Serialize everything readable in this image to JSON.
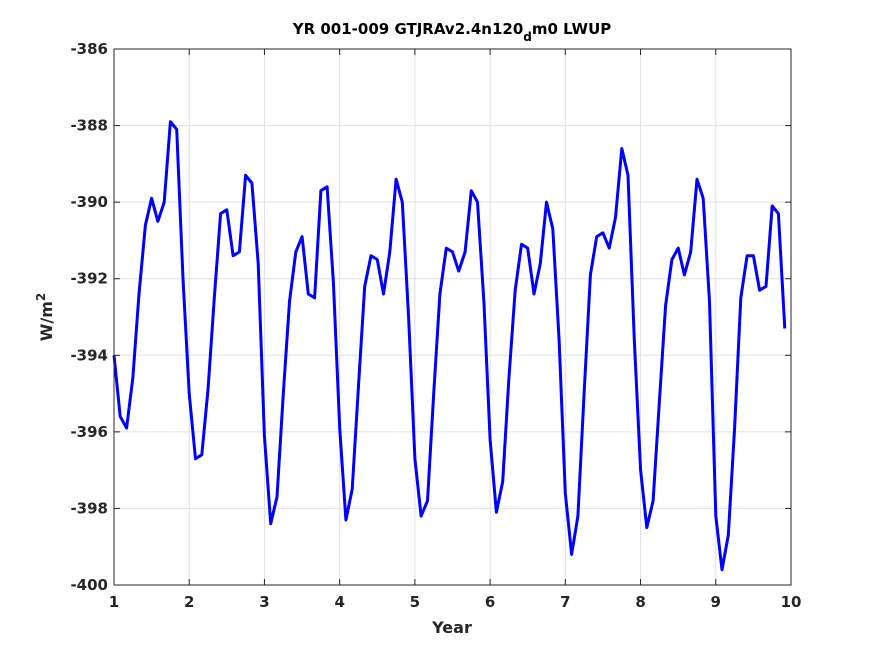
{
  "chart_data": {
    "type": "line",
    "title": "YR 001-009 GTJRAv2.4n120",
    "title_subscript": "d",
    "title_suffix": "m0 LWUP",
    "xlabel": "Year",
    "ylabel_base": "W/m",
    "ylabel_sup": "2",
    "xlim": [
      1,
      10
    ],
    "ylim": [
      -400,
      -386
    ],
    "xticks": [
      1,
      2,
      3,
      4,
      5,
      6,
      7,
      8,
      9,
      10
    ],
    "xtick_labels": [
      "1",
      "2",
      "3",
      "4",
      "5",
      "6",
      "7",
      "8",
      "9",
      "10"
    ],
    "yticks": [
      -386,
      -388,
      -390,
      -392,
      -394,
      -396,
      -398,
      -400
    ],
    "ytick_labels": [
      "-386",
      "-388",
      "-390",
      "-392",
      "-394",
      "-396",
      "-398",
      "-400"
    ],
    "grid": true,
    "line_color": "#0000ff",
    "series": [
      {
        "x": [
          1.0,
          1.083,
          1.167,
          1.25,
          1.333,
          1.417,
          1.5,
          1.583,
          1.667,
          1.75,
          1.833,
          1.917,
          2.0,
          2.083,
          2.167,
          2.25,
          2.333,
          2.417,
          2.5,
          2.583,
          2.667,
          2.75,
          2.833,
          2.917,
          3.0,
          3.083,
          3.167,
          3.25,
          3.333,
          3.417,
          3.5,
          3.583,
          3.667,
          3.75,
          3.833,
          3.917,
          4.0,
          4.083,
          4.167,
          4.25,
          4.333,
          4.417,
          4.5,
          4.583,
          4.667,
          4.75,
          4.833,
          4.917,
          5.0,
          5.083,
          5.167,
          5.25,
          5.333,
          5.417,
          5.5,
          5.583,
          5.667,
          5.75,
          5.833,
          5.917,
          6.0,
          6.083,
          6.167,
          6.25,
          6.333,
          6.417,
          6.5,
          6.583,
          6.667,
          6.75,
          6.833,
          6.917,
          7.0,
          7.083,
          7.167,
          7.25,
          7.333,
          7.417,
          7.5,
          7.583,
          7.667,
          7.75,
          7.833,
          7.917,
          8.0,
          8.083,
          8.167,
          8.25,
          8.333,
          8.417,
          8.5,
          8.583,
          8.667,
          8.75,
          8.833,
          8.917,
          9.0,
          9.083,
          9.167,
          9.25,
          9.333,
          9.417,
          9.5,
          9.583,
          9.667,
          9.75,
          9.833,
          9.917
        ],
        "y": [
          -394.0,
          -395.6,
          -395.9,
          -394.6,
          -392.4,
          -390.6,
          -389.9,
          -390.5,
          -390.0,
          -387.9,
          -388.1,
          -392.0,
          -395.0,
          -396.7,
          -396.6,
          -394.9,
          -392.5,
          -390.3,
          -390.2,
          -391.4,
          -391.3,
          -389.3,
          -389.5,
          -391.6,
          -396.1,
          -398.4,
          -397.7,
          -395.0,
          -392.6,
          -391.3,
          -390.9,
          -392.4,
          -392.5,
          -389.7,
          -389.6,
          -392.1,
          -395.9,
          -398.3,
          -397.5,
          -394.8,
          -392.2,
          -391.4,
          -391.5,
          -392.4,
          -391.3,
          -389.4,
          -390.0,
          -393.0,
          -396.7,
          -398.2,
          -397.8,
          -395.0,
          -392.4,
          -391.2,
          -391.3,
          -391.8,
          -391.3,
          -389.7,
          -390.0,
          -392.6,
          -396.2,
          -398.1,
          -397.3,
          -394.6,
          -392.3,
          -391.1,
          -391.2,
          -392.4,
          -391.6,
          -390.0,
          -390.7,
          -393.6,
          -397.6,
          -399.2,
          -398.2,
          -395.0,
          -391.9,
          -390.9,
          -390.8,
          -391.2,
          -390.4,
          -388.6,
          -389.3,
          -393.6,
          -397.0,
          -398.5,
          -397.8,
          -395.2,
          -392.7,
          -391.5,
          -391.2,
          -391.9,
          -391.3,
          -389.4,
          -389.9,
          -392.6,
          -398.2,
          -399.6,
          -398.7,
          -395.9,
          -392.5,
          -391.4,
          -391.4,
          -392.3,
          -392.2,
          -390.1,
          -390.3,
          -393.3
        ]
      }
    ]
  }
}
